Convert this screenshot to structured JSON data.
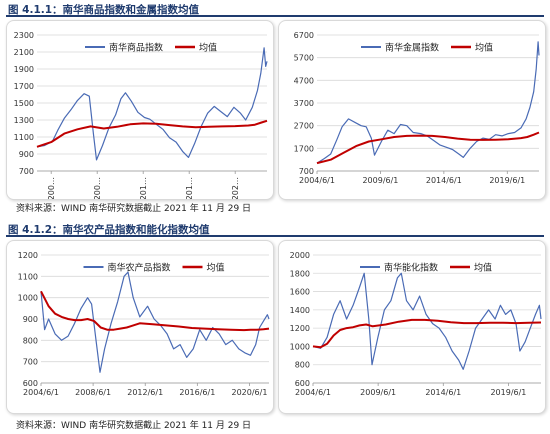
{
  "figure1": {
    "title": "图 4.1.1：南华商品指数和金属指数均值",
    "source": "资料来源：WIND 南华研究数据截止 2021 年 11 月 29 日"
  },
  "figure2": {
    "title": "图 4.1.2：南华农产品指数和能化指数均值",
    "source": "资料来源：WIND 南华研究数据截止 2021 年 11 月 29 日"
  },
  "colors": {
    "index_line": "#4a6bb5",
    "mean_line": "#c00000",
    "title_blue": "#1f3b6e",
    "grid": "#d9d9d9"
  },
  "chart_data": [
    {
      "id": "commodity",
      "type": "line",
      "legend_position": "top-center",
      "grid": "horizontal",
      "ylim": [
        700,
        2300
      ],
      "yticks": [
        "700",
        "900",
        "1100",
        "1300",
        "1500",
        "1700",
        "1900",
        "2100",
        "2300"
      ],
      "xlim": [
        2004.42,
        2021.92
      ],
      "xticks": [
        {
          "pos": 2005.5,
          "label": "200…"
        },
        {
          "pos": 2009.0,
          "label": "200…"
        },
        {
          "pos": 2012.5,
          "label": "201…"
        },
        {
          "pos": 2016.0,
          "label": "201…"
        },
        {
          "pos": 2019.5,
          "label": "202…"
        }
      ],
      "series": [
        {
          "name": "南华商品指数",
          "role": "index",
          "x": [
            2004.42,
            2005.0,
            2005.6,
            2006.0,
            2006.5,
            2007.0,
            2007.5,
            2008.0,
            2008.4,
            2008.7,
            2008.95,
            2009.4,
            2009.9,
            2010.4,
            2010.8,
            2011.15,
            2011.6,
            2012.1,
            2012.6,
            2013.0,
            2013.5,
            2014.0,
            2014.5,
            2015.0,
            2015.5,
            2015.95,
            2016.4,
            2016.9,
            2017.4,
            2017.9,
            2018.4,
            2018.9,
            2019.4,
            2019.9,
            2020.3,
            2020.8,
            2021.2,
            2021.45,
            2021.7,
            2021.82,
            2021.92
          ],
          "values": [
            985,
            1000,
            1050,
            1180,
            1320,
            1420,
            1530,
            1610,
            1580,
            1150,
            830,
            1000,
            1210,
            1360,
            1550,
            1620,
            1520,
            1390,
            1330,
            1310,
            1250,
            1190,
            1090,
            1040,
            930,
            860,
            1020,
            1220,
            1380,
            1460,
            1400,
            1340,
            1450,
            1380,
            1300,
            1450,
            1650,
            1850,
            2150,
            1930,
            1990
          ]
        },
        {
          "name": "均值",
          "role": "mean",
          "x": [
            2004.42,
            2005.5,
            2006.5,
            2007.5,
            2008.5,
            2009.5,
            2010.5,
            2011.5,
            2012.5,
            2013.5,
            2014.5,
            2015.5,
            2016.5,
            2017.5,
            2018.5,
            2019.5,
            2020.5,
            2021.0,
            2021.5,
            2021.92
          ],
          "values": [
            985,
            1040,
            1140,
            1190,
            1225,
            1200,
            1220,
            1250,
            1260,
            1255,
            1240,
            1225,
            1215,
            1220,
            1225,
            1228,
            1235,
            1245,
            1270,
            1290
          ]
        }
      ]
    },
    {
      "id": "metals",
      "type": "line",
      "legend_position": "top-center",
      "grid": "horizontal",
      "ylim": [
        700,
        6700
      ],
      "yticks": [
        "700",
        "1700",
        "2700",
        "3700",
        "4700",
        "5700",
        "6700"
      ],
      "xlim": [
        2004.42,
        2021.92
      ],
      "xticks": [
        {
          "pos": 2004.42,
          "label": "2004/6/1"
        },
        {
          "pos": 2009.42,
          "label": "2009/6/1"
        },
        {
          "pos": 2014.42,
          "label": "2014/6/1"
        },
        {
          "pos": 2019.42,
          "label": "2019/6/1"
        }
      ],
      "series": [
        {
          "name": "南华金属指数",
          "role": "index",
          "x": [
            2004.42,
            2005.0,
            2005.5,
            2006.0,
            2006.4,
            2006.9,
            2007.4,
            2007.9,
            2008.3,
            2008.7,
            2008.95,
            2009.5,
            2010.0,
            2010.5,
            2011.0,
            2011.5,
            2012.0,
            2012.6,
            2013.1,
            2013.6,
            2014.1,
            2014.6,
            2015.1,
            2015.6,
            2015.95,
            2016.5,
            2017.0,
            2017.5,
            2018.0,
            2018.5,
            2019.0,
            2019.5,
            2020.0,
            2020.5,
            2020.9,
            2021.2,
            2021.5,
            2021.7,
            2021.85,
            2021.92
          ],
          "values": [
            1050,
            1250,
            1450,
            2100,
            2650,
            3000,
            2850,
            2700,
            2650,
            2150,
            1400,
            2000,
            2500,
            2350,
            2750,
            2700,
            2400,
            2350,
            2250,
            2050,
            1850,
            1750,
            1650,
            1450,
            1300,
            1700,
            2000,
            2150,
            2100,
            2300,
            2250,
            2350,
            2400,
            2600,
            3000,
            3500,
            4200,
            5200,
            6400,
            5800
          ]
        },
        {
          "name": "均值",
          "role": "mean",
          "x": [
            2004.42,
            2005.5,
            2006.5,
            2007.5,
            2008.5,
            2009.5,
            2010.5,
            2011.5,
            2012.5,
            2013.5,
            2014.5,
            2015.5,
            2016.5,
            2017.5,
            2018.5,
            2019.5,
            2020.5,
            2021.0,
            2021.5,
            2021.92
          ],
          "values": [
            1050,
            1200,
            1500,
            1800,
            2000,
            2100,
            2200,
            2250,
            2260,
            2250,
            2200,
            2130,
            2080,
            2070,
            2080,
            2100,
            2150,
            2200,
            2300,
            2400
          ]
        }
      ]
    },
    {
      "id": "agri",
      "type": "line",
      "legend_position": "top-center",
      "grid": "horizontal",
      "ylim": [
        600,
        1200
      ],
      "yticks": [
        "600",
        "700",
        "800",
        "900",
        "1000",
        "1100",
        "1200"
      ],
      "xlim": [
        2004.42,
        2021.92
      ],
      "xticks": [
        {
          "pos": 2004.42,
          "label": "2004/6/1"
        },
        {
          "pos": 2008.42,
          "label": "2008/6/1"
        },
        {
          "pos": 2012.42,
          "label": "2012/6/1"
        },
        {
          "pos": 2016.42,
          "label": "2016/6/1"
        },
        {
          "pos": 2020.42,
          "label": "2020/6/1"
        }
      ],
      "series": [
        {
          "name": "南华农产品指数",
          "role": "index",
          "x": [
            2004.42,
            2004.7,
            2005.0,
            2005.5,
            2006.0,
            2006.5,
            2007.0,
            2007.5,
            2008.0,
            2008.3,
            2008.6,
            2008.95,
            2009.3,
            2009.8,
            2010.3,
            2010.8,
            2011.1,
            2011.5,
            2012.0,
            2012.6,
            2013.1,
            2013.6,
            2014.1,
            2014.6,
            2015.1,
            2015.6,
            2016.1,
            2016.6,
            2017.1,
            2017.6,
            2018.1,
            2018.6,
            2019.1,
            2019.6,
            2020.1,
            2020.5,
            2020.9,
            2021.2,
            2021.5,
            2021.8,
            2021.92
          ],
          "values": [
            1030,
            850,
            900,
            830,
            800,
            820,
            880,
            950,
            1000,
            970,
            820,
            650,
            760,
            880,
            980,
            1100,
            1120,
            1000,
            910,
            960,
            900,
            870,
            830,
            760,
            780,
            720,
            760,
            850,
            800,
            860,
            830,
            780,
            800,
            760,
            740,
            730,
            780,
            860,
            890,
            920,
            900
          ]
        },
        {
          "name": "均值",
          "role": "mean",
          "x": [
            2004.42,
            2005.0,
            2005.5,
            2006.0,
            2006.5,
            2007.0,
            2007.5,
            2008.0,
            2008.5,
            2009.0,
            2009.5,
            2010.0,
            2010.5,
            2011.0,
            2011.5,
            2012.0,
            2013.0,
            2014.0,
            2015.0,
            2016.0,
            2017.0,
            2018.0,
            2019.0,
            2020.0,
            2020.5,
            2021.0,
            2021.5,
            2021.92
          ],
          "values": [
            1030,
            960,
            925,
            910,
            900,
            895,
            895,
            900,
            890,
            860,
            850,
            850,
            855,
            860,
            870,
            880,
            875,
            870,
            865,
            858,
            855,
            852,
            850,
            848,
            850,
            850,
            852,
            855
          ]
        }
      ]
    },
    {
      "id": "energy_chem",
      "type": "line",
      "legend_position": "top-center",
      "grid": "horizontal",
      "ylim": [
        600,
        2000
      ],
      "yticks": [
        "600",
        "800",
        "1000",
        "1200",
        "1400",
        "1600",
        "1800",
        "2000"
      ],
      "xlim": [
        2004.42,
        2021.92
      ],
      "xticks": [
        {
          "pos": 2004.42,
          "label": "2004/6/1"
        },
        {
          "pos": 2009.42,
          "label": "2009/6/1"
        },
        {
          "pos": 2014.42,
          "label": "2014/6/1"
        },
        {
          "pos": 2019.42,
          "label": "2019/6/1"
        }
      ],
      "series": [
        {
          "name": "南华能化指数",
          "role": "index",
          "x": [
            2004.42,
            2005.0,
            2005.5,
            2006.0,
            2006.5,
            2007.0,
            2007.5,
            2008.0,
            2008.35,
            2008.7,
            2008.95,
            2009.4,
            2009.9,
            2010.4,
            2010.9,
            2011.2,
            2011.6,
            2012.1,
            2012.6,
            2013.1,
            2013.6,
            2014.1,
            2014.6,
            2015.1,
            2015.6,
            2015.95,
            2016.4,
            2016.9,
            2017.4,
            2017.9,
            2018.4,
            2018.8,
            2019.2,
            2019.6,
            2020.0,
            2020.3,
            2020.7,
            2021.1,
            2021.5,
            2021.8,
            2021.92
          ],
          "values": [
            1000,
            980,
            1100,
            1350,
            1500,
            1300,
            1450,
            1650,
            1800,
            1300,
            800,
            1100,
            1400,
            1500,
            1750,
            1800,
            1500,
            1400,
            1550,
            1350,
            1250,
            1200,
            1100,
            950,
            850,
            750,
            950,
            1200,
            1300,
            1400,
            1300,
            1450,
            1350,
            1400,
            1250,
            950,
            1050,
            1200,
            1350,
            1450,
            1300
          ]
        },
        {
          "name": "均值",
          "role": "mean",
          "x": [
            2004.42,
            2005.0,
            2005.5,
            2006.0,
            2006.5,
            2007.0,
            2007.5,
            2008.0,
            2008.5,
            2009.0,
            2010.0,
            2011.0,
            2012.0,
            2013.0,
            2014.0,
            2015.0,
            2016.0,
            2017.0,
            2018.0,
            2019.0,
            2020.0,
            2021.0,
            2021.92
          ],
          "values": [
            1000,
            990,
            1030,
            1120,
            1180,
            1200,
            1210,
            1230,
            1240,
            1220,
            1240,
            1270,
            1290,
            1290,
            1280,
            1265,
            1255,
            1255,
            1260,
            1260,
            1255,
            1258,
            1262
          ]
        }
      ]
    }
  ]
}
